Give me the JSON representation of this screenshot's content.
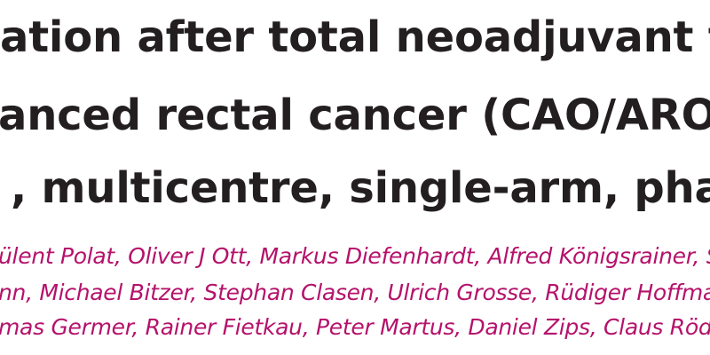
{
  "article": {
    "title_lines": [
      "ation after total neoadjuvant th",
      "anced rectal cancer (CAO/ARO/A",
      ", multicentre, single-arm, phase"
    ],
    "author_lines": [
      "ülent Polat, Oliver J Ott, Markus Diefenhardt, Alfred Königsrainer, Simon Bök",
      "nn, Michael Bitzer, Stephan Clasen, Ulrich Grosse, Rüdiger Hoffmann, Mart",
      "mas Germer, Rainer Fietkau, Peter Martus, Daniel Zips, Claus Rödel"
    ]
  },
  "colors": {
    "title_text": "#231f20",
    "author_text": "#b5126b",
    "background": "#ffffff"
  }
}
